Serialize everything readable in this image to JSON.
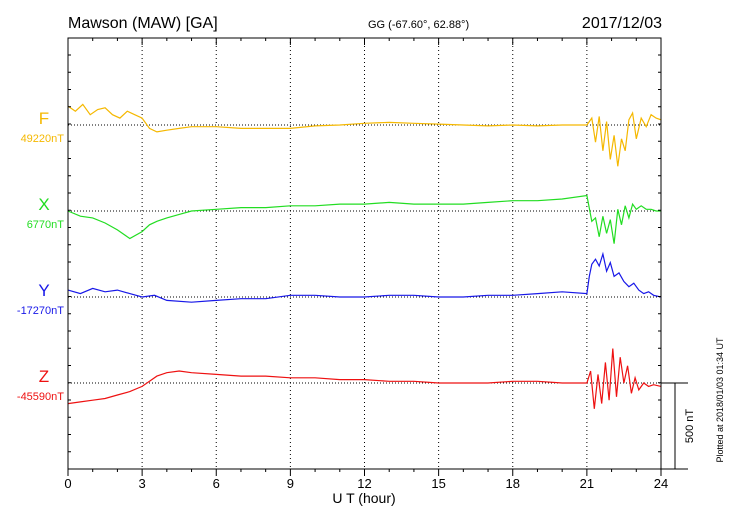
{
  "header": {
    "station": "Mawson (MAW)  [GA]",
    "coords": "GG (-67.60°,  62.88°)",
    "date": "2017/12/03"
  },
  "footer_note": "Plotted at 2018/01/03 01:34 UT",
  "chart_data": {
    "type": "line",
    "title": "Mawson (MAW)  [GA]",
    "xlabel": "U T (hour)",
    "xlim": [
      0,
      24
    ],
    "xticks": [
      "0",
      "3",
      "6",
      "9",
      "12",
      "15",
      "18",
      "21",
      "24"
    ],
    "grid": "vertical dotted at every 3 hours",
    "scale_bar": {
      "label": "500 nT",
      "value_nT": 500
    },
    "series": [
      {
        "name": "F",
        "baseline_label": "49220nT",
        "baseline_nT": 49220,
        "color": "#f5b800",
        "x": [
          0,
          0.3,
          0.6,
          0.9,
          1.2,
          1.5,
          1.8,
          2.1,
          2.4,
          2.7,
          3.0,
          3.3,
          3.6,
          4.0,
          4.5,
          5,
          6,
          7,
          8,
          9,
          10,
          11,
          12,
          13,
          14,
          15,
          16,
          17,
          18,
          19,
          20,
          21,
          21.2,
          21.35,
          21.5,
          21.65,
          21.8,
          21.95,
          22.1,
          22.25,
          22.4,
          22.55,
          22.7,
          22.85,
          23.0,
          23.2,
          23.4,
          23.6,
          23.8,
          24
        ],
        "values": [
          110,
          80,
          120,
          60,
          90,
          100,
          60,
          40,
          80,
          60,
          40,
          -20,
          -40,
          -30,
          -20,
          -10,
          -10,
          -20,
          -20,
          -20,
          -5,
          0,
          10,
          15,
          10,
          5,
          0,
          -5,
          0,
          -5,
          0,
          0,
          40,
          -100,
          50,
          -150,
          20,
          -200,
          -60,
          -240,
          -80,
          -150,
          30,
          70,
          -80,
          40,
          -10,
          60,
          40,
          30
        ]
      },
      {
        "name": "X",
        "baseline_label": "6770nT",
        "baseline_nT": 6770,
        "color": "#22dd22",
        "x": [
          0,
          0.5,
          1,
          1.5,
          2,
          2.5,
          3,
          3.3,
          3.6,
          4,
          4.5,
          5,
          6,
          7,
          8,
          9,
          10,
          11,
          12,
          13,
          14,
          15,
          16,
          17,
          18,
          19,
          20,
          21,
          21.2,
          21.35,
          21.5,
          21.65,
          21.8,
          21.95,
          22.1,
          22.25,
          22.4,
          22.55,
          22.7,
          22.85,
          23,
          23.2,
          23.4,
          23.6,
          23.8,
          24
        ],
        "values": [
          0,
          -30,
          -40,
          -70,
          -110,
          -160,
          -120,
          -80,
          -60,
          -40,
          -20,
          0,
          10,
          20,
          20,
          30,
          30,
          40,
          40,
          50,
          40,
          40,
          40,
          50,
          60,
          60,
          70,
          90,
          -60,
          -40,
          -150,
          -30,
          -130,
          -50,
          -190,
          10,
          -80,
          30,
          -40,
          40,
          10,
          30,
          10,
          10,
          0,
          0
        ]
      },
      {
        "name": "Y",
        "baseline_label": "-17270nT",
        "baseline_nT": -17270,
        "color": "#1818e8",
        "x": [
          0,
          0.5,
          1,
          1.5,
          2,
          2.5,
          3,
          3.5,
          4,
          5,
          6,
          7,
          8,
          9,
          10,
          11,
          12,
          13,
          14,
          15,
          16,
          17,
          18,
          19,
          20,
          21,
          21.1,
          21.2,
          21.35,
          21.5,
          21.65,
          21.8,
          21.95,
          22.1,
          22.3,
          22.5,
          22.7,
          22.9,
          23.1,
          23.3,
          23.5,
          23.7,
          24
        ],
        "values": [
          40,
          20,
          50,
          30,
          40,
          20,
          0,
          10,
          -20,
          -30,
          -20,
          -10,
          -10,
          10,
          10,
          0,
          0,
          10,
          10,
          0,
          0,
          10,
          10,
          20,
          30,
          20,
          120,
          190,
          220,
          180,
          250,
          150,
          200,
          120,
          140,
          90,
          60,
          80,
          40,
          20,
          30,
          10,
          0
        ]
      },
      {
        "name": "Z",
        "baseline_label": "-45590nT",
        "baseline_nT": -45590,
        "color": "#ee1111",
        "x": [
          0,
          0.5,
          1,
          1.5,
          2,
          2.5,
          3,
          3.3,
          3.6,
          4,
          4.5,
          5,
          6,
          7,
          8,
          9,
          10,
          11,
          12,
          13,
          14,
          15,
          16,
          17,
          18,
          19,
          20,
          21,
          21.15,
          21.3,
          21.45,
          21.6,
          21.75,
          21.9,
          22.05,
          22.2,
          22.35,
          22.5,
          22.65,
          22.8,
          22.95,
          23.1,
          23.3,
          23.5,
          23.7,
          24
        ],
        "values": [
          -120,
          -110,
          -100,
          -90,
          -70,
          -50,
          -20,
          10,
          40,
          60,
          70,
          60,
          50,
          40,
          40,
          30,
          30,
          20,
          20,
          10,
          10,
          0,
          0,
          0,
          10,
          10,
          0,
          0,
          70,
          -150,
          50,
          -120,
          120,
          -100,
          200,
          -80,
          150,
          0,
          100,
          -60,
          30,
          -40,
          0,
          -20,
          -10,
          -20
        ]
      }
    ]
  }
}
